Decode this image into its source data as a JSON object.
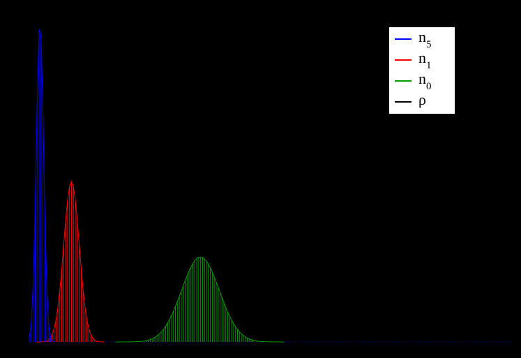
{
  "background_color": "#000000",
  "legend": {
    "entries": [
      {
        "base": "n",
        "sub": "5",
        "color": "#0000ff"
      },
      {
        "base": "n",
        "sub": "1",
        "color": "#ff0000"
      },
      {
        "base": "n",
        "sub": "0",
        "color": "#009900"
      },
      {
        "base": "ρ",
        "sub": "",
        "color": "#000000"
      }
    ]
  },
  "chart_data": {
    "type": "bar",
    "title": "",
    "xlabel": "",
    "ylabel": "",
    "x_range": [
      0,
      1
    ],
    "y_range": [
      0,
      1
    ],
    "bin_width": 0.004,
    "axis_color": "#00008b",
    "series": [
      {
        "name": "n5",
        "color": "#0000ff",
        "mean": 0.022,
        "sigma": 0.0075,
        "peak": 1.0
      },
      {
        "name": "n1",
        "color": "#ff0000",
        "mean": 0.087,
        "sigma": 0.016,
        "peak": 0.5
      },
      {
        "name": "n0",
        "color": "#009900",
        "mean": 0.353,
        "sigma": 0.039,
        "peak": 0.265
      },
      {
        "name": "rho",
        "color": "#000000",
        "mean": 0.5,
        "sigma": 0.0,
        "peak": 0.0
      }
    ]
  }
}
